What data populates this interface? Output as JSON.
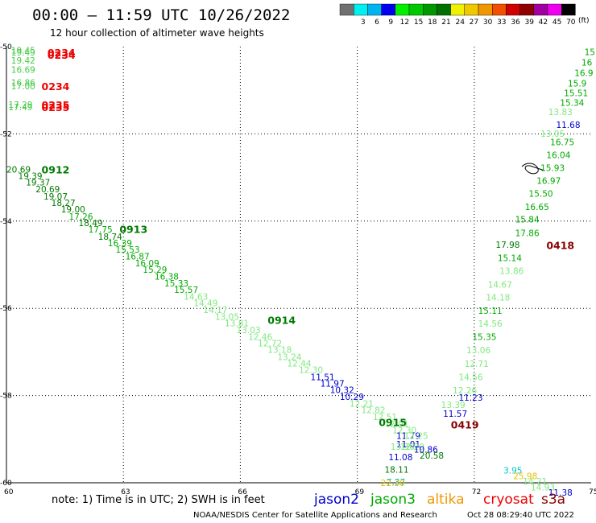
{
  "header": {
    "title": "00:00 – 11:59 UTC 10/26/2022",
    "subtitle": "12 hour collection of altimeter wave heights"
  },
  "color_scale": {
    "bins": [
      {
        "color": "#707070",
        "label": ""
      },
      {
        "color": "#00f0f0",
        "label": "3"
      },
      {
        "color": "#00b4f0",
        "label": "6"
      },
      {
        "color": "#0000f0",
        "label": "9"
      },
      {
        "color": "#00f000",
        "label": "12"
      },
      {
        "color": "#00c800",
        "label": "15"
      },
      {
        "color": "#009800",
        "label": "18"
      },
      {
        "color": "#007000",
        "label": "21"
      },
      {
        "color": "#f0f000",
        "label": "24"
      },
      {
        "color": "#f0c800",
        "label": "27"
      },
      {
        "color": "#f09600",
        "label": "30"
      },
      {
        "color": "#f05000",
        "label": "33"
      },
      {
        "color": "#d00000",
        "label": "36"
      },
      {
        "color": "#900000",
        "label": "39"
      },
      {
        "color": "#a000a0",
        "label": "42"
      },
      {
        "color": "#f000f0",
        "label": "45"
      },
      {
        "color": "#000000",
        "label": "70"
      }
    ],
    "unit": "(ft)"
  },
  "chart_data": {
    "type": "scatter",
    "xlim": [
      60,
      75
    ],
    "ylim": [
      -60,
      -50
    ],
    "x_ticks": [
      "60",
      "63",
      "66",
      "69",
      "72",
      "75"
    ],
    "y_ticks": [
      "-50",
      "-52",
      "-54",
      "-56",
      "-58",
      "-60"
    ],
    "grid": true,
    "value_colors": {
      "pale": "#80e880",
      "light": "#44cc44",
      "green": "#00aa00",
      "dark": "#007a00",
      "blue": "#0000cc",
      "cyan": "#00c8c8",
      "yellow": "#e8c000",
      "red": "#ee0000",
      "maroon": "#880000"
    },
    "points": [
      {
        "x": 60.12,
        "y": -50.08,
        "v": "19.45",
        "c": "light"
      },
      {
        "x": 60.12,
        "y": -50.13,
        "v": "19.49",
        "c": "light"
      },
      {
        "x": 60.12,
        "y": -50.31,
        "v": "19.42",
        "c": "light"
      },
      {
        "x": 60.12,
        "y": -50.53,
        "v": "16.69",
        "c": "light"
      },
      {
        "x": 60.12,
        "y": -50.82,
        "v": "16.86",
        "c": "light"
      },
      {
        "x": 60.12,
        "y": -50.9,
        "v": "17.00",
        "c": "light"
      },
      {
        "x": 60.05,
        "y": -51.33,
        "v": "17.29",
        "c": "light"
      },
      {
        "x": 60.05,
        "y": -51.38,
        "v": "17.49",
        "c": "light"
      },
      {
        "x": 60.0,
        "y": -52.81,
        "v": "20.69",
        "c": "dark"
      },
      {
        "x": 60.3,
        "y": -52.96,
        "v": "19.39",
        "c": "dark"
      },
      {
        "x": 60.5,
        "y": -53.11,
        "v": "19.37",
        "c": "dark"
      },
      {
        "x": 60.75,
        "y": -53.27,
        "v": "20.69",
        "c": "dark"
      },
      {
        "x": 60.95,
        "y": -53.43,
        "v": "19.07",
        "c": "dark"
      },
      {
        "x": 61.15,
        "y": -53.58,
        "v": "18.27",
        "c": "dark"
      },
      {
        "x": 61.4,
        "y": -53.73,
        "v": "19.00",
        "c": "dark"
      },
      {
        "x": 61.6,
        "y": -53.89,
        "v": "17.26",
        "c": "green"
      },
      {
        "x": 61.85,
        "y": -54.04,
        "v": "18.49",
        "c": "dark"
      },
      {
        "x": 62.1,
        "y": -54.19,
        "v": "17.75",
        "c": "green"
      },
      {
        "x": 62.35,
        "y": -54.35,
        "v": "18.74",
        "c": "dark"
      },
      {
        "x": 62.6,
        "y": -54.5,
        "v": "16.39",
        "c": "green"
      },
      {
        "x": 62.8,
        "y": -54.65,
        "v": "15.53",
        "c": "green"
      },
      {
        "x": 63.05,
        "y": -54.81,
        "v": "16.87",
        "c": "green"
      },
      {
        "x": 63.3,
        "y": -54.96,
        "v": "16.09",
        "c": "green"
      },
      {
        "x": 63.5,
        "y": -55.11,
        "v": "15.29",
        "c": "green"
      },
      {
        "x": 63.8,
        "y": -55.27,
        "v": "16.38",
        "c": "green"
      },
      {
        "x": 64.05,
        "y": -55.42,
        "v": "15.33",
        "c": "green"
      },
      {
        "x": 64.3,
        "y": -55.57,
        "v": "15.57",
        "c": "green"
      },
      {
        "x": 64.55,
        "y": -55.73,
        "v": "14.63",
        "c": "pale"
      },
      {
        "x": 64.8,
        "y": -55.88,
        "v": "14.49",
        "c": "pale"
      },
      {
        "x": 65.05,
        "y": -56.03,
        "v": "14.17",
        "c": "pale"
      },
      {
        "x": 65.35,
        "y": -56.19,
        "v": "13.05",
        "c": "pale"
      },
      {
        "x": 65.6,
        "y": -56.34,
        "v": "13.81",
        "c": "pale"
      },
      {
        "x": 65.9,
        "y": -56.49,
        "v": "13.03",
        "c": "pale"
      },
      {
        "x": 66.2,
        "y": -56.65,
        "v": "12.46",
        "c": "pale"
      },
      {
        "x": 66.45,
        "y": -56.8,
        "v": "12.72",
        "c": "pale"
      },
      {
        "x": 66.7,
        "y": -56.95,
        "v": "13.18",
        "c": "pale"
      },
      {
        "x": 66.95,
        "y": -57.11,
        "v": "13.24",
        "c": "pale"
      },
      {
        "x": 67.2,
        "y": -57.26,
        "v": "12.44",
        "c": "pale"
      },
      {
        "x": 67.5,
        "y": -57.41,
        "v": "12.30",
        "c": "pale"
      },
      {
        "x": 67.8,
        "y": -57.57,
        "v": "11.51",
        "c": "blue"
      },
      {
        "x": 68.05,
        "y": -57.72,
        "v": "11.97",
        "c": "blue"
      },
      {
        "x": 68.3,
        "y": -57.87,
        "v": "10.32",
        "c": "blue"
      },
      {
        "x": 68.55,
        "y": -58.03,
        "v": "10.29",
        "c": "blue"
      },
      {
        "x": 68.8,
        "y": -58.18,
        "v": "12.21",
        "c": "pale"
      },
      {
        "x": 69.1,
        "y": -58.33,
        "v": "12.82",
        "c": "pale"
      },
      {
        "x": 69.4,
        "y": -58.49,
        "v": "12.51",
        "c": "pale"
      },
      {
        "x": 69.7,
        "y": -58.64,
        "v": "12.01",
        "c": "pale"
      },
      {
        "x": 69.9,
        "y": -58.79,
        "v": "12.30",
        "c": "pale"
      },
      {
        "x": 70.0,
        "y": -58.92,
        "v": "11.79",
        "c": "blue"
      },
      {
        "x": 70.2,
        "y": -58.92,
        "v": "12.25",
        "c": "pale"
      },
      {
        "x": 70.0,
        "y": -59.11,
        "v": "11.01",
        "c": "blue"
      },
      {
        "x": 69.85,
        "y": -59.17,
        "v": "13.36",
        "c": "pale"
      },
      {
        "x": 70.1,
        "y": -59.17,
        "v": "12.20",
        "c": "pale"
      },
      {
        "x": 70.45,
        "y": -59.23,
        "v": "10.86",
        "c": "blue"
      },
      {
        "x": 69.8,
        "y": -59.41,
        "v": "11.08",
        "c": "blue"
      },
      {
        "x": 70.6,
        "y": -59.37,
        "v": "20.58",
        "c": "dark"
      },
      {
        "x": 69.7,
        "y": -59.7,
        "v": "18.11",
        "c": "dark"
      },
      {
        "x": 69.75,
        "y": -59.98,
        "v": "7.37",
        "c": "cyan"
      },
      {
        "x": 69.6,
        "y": -60.0,
        "v": "22.30",
        "c": "yellow"
      },
      {
        "x": 72.75,
        "y": -59.71,
        "v": "3.95",
        "c": "cyan"
      },
      {
        "x": 73.0,
        "y": -59.84,
        "v": "25.98",
        "c": "yellow"
      },
      {
        "x": 73.25,
        "y": -59.96,
        "v": "14.21",
        "c": "pale"
      },
      {
        "x": 73.45,
        "y": -60.1,
        "v": "14.93",
        "c": "pale"
      },
      {
        "x": 73.9,
        "y": -60.22,
        "v": "11.38",
        "c": "blue"
      },
      {
        "x": 71.6,
        "y": -58.04,
        "v": "11.23",
        "c": "blue"
      },
      {
        "x": 71.15,
        "y": -58.21,
        "v": "13.39",
        "c": "pale"
      },
      {
        "x": 71.2,
        "y": -58.41,
        "v": "11.57",
        "c": "blue"
      },
      {
        "x": 71.45,
        "y": -57.88,
        "v": "12.26",
        "c": "pale"
      },
      {
        "x": 71.6,
        "y": -57.57,
        "v": "14.56",
        "c": "pale"
      },
      {
        "x": 71.75,
        "y": -57.27,
        "v": "12.71",
        "c": "pale"
      },
      {
        "x": 71.8,
        "y": -56.96,
        "v": "13.06",
        "c": "pale"
      },
      {
        "x": 71.95,
        "y": -56.65,
        "v": "15.35",
        "c": "green"
      },
      {
        "x": 72.1,
        "y": -56.35,
        "v": "14.56",
        "c": "pale"
      },
      {
        "x": 72.1,
        "y": -56.05,
        "v": "15.11",
        "c": "green"
      },
      {
        "x": 72.3,
        "y": -55.75,
        "v": "14.18",
        "c": "pale"
      },
      {
        "x": 72.35,
        "y": -55.45,
        "v": "14.67",
        "c": "pale"
      },
      {
        "x": 72.65,
        "y": -55.14,
        "v": "13.86",
        "c": "pale"
      },
      {
        "x": 72.6,
        "y": -54.84,
        "v": "15.14",
        "c": "green"
      },
      {
        "x": 72.55,
        "y": -54.54,
        "v": "17.98",
        "c": "dark"
      },
      {
        "x": 73.05,
        "y": -54.27,
        "v": "17.86",
        "c": "green"
      },
      {
        "x": 73.05,
        "y": -53.96,
        "v": "15.84",
        "c": "green"
      },
      {
        "x": 73.3,
        "y": -53.67,
        "v": "16.65",
        "c": "green"
      },
      {
        "x": 73.4,
        "y": -53.37,
        "v": "15.50",
        "c": "green"
      },
      {
        "x": 73.6,
        "y": -53.07,
        "v": "16.97",
        "c": "green"
      },
      {
        "x": 73.7,
        "y": -52.78,
        "v": "15.93",
        "c": "green"
      },
      {
        "x": 73.85,
        "y": -52.48,
        "v": "16.04",
        "c": "green"
      },
      {
        "x": 73.95,
        "y": -52.19,
        "v": "16.75",
        "c": "green"
      },
      {
        "x": 73.7,
        "y": -51.99,
        "v": "13.05",
        "c": "pale"
      },
      {
        "x": 74.1,
        "y": -51.79,
        "v": "11.68",
        "c": "blue"
      },
      {
        "x": 73.9,
        "y": -51.49,
        "v": "13.83",
        "c": "pale"
      },
      {
        "x": 74.2,
        "y": -51.28,
        "v": "15.34",
        "c": "green"
      },
      {
        "x": 74.3,
        "y": -51.06,
        "v": "15.51",
        "c": "green"
      },
      {
        "x": 74.4,
        "y": -50.84,
        "v": "15.9",
        "c": "green"
      },
      {
        "x": 74.6,
        "y": -50.6,
        "v": "16.9",
        "c": "green"
      },
      {
        "x": 74.75,
        "y": -50.36,
        "v": "16",
        "c": "green"
      },
      {
        "x": 74.95,
        "y": -50.12,
        "v": "15",
        "c": "green"
      }
    ],
    "pass_times": [
      {
        "x": 61.05,
        "y": -50.13,
        "v": "0234",
        "c": "red"
      },
      {
        "x": 61.05,
        "y": -50.18,
        "v": "0234",
        "c": "red"
      },
      {
        "x": 60.9,
        "y": -50.9,
        "v": "0234",
        "c": "red"
      },
      {
        "x": 60.9,
        "y": -51.33,
        "v": "0235",
        "c": "red"
      },
      {
        "x": 60.9,
        "y": -51.38,
        "v": "0235",
        "c": "red"
      },
      {
        "x": 60.9,
        "y": -52.81,
        "v": "0912",
        "c": "dark"
      },
      {
        "x": 62.9,
        "y": -54.18,
        "v": "0913",
        "c": "dark"
      },
      {
        "x": 66.7,
        "y": -56.26,
        "v": "0914",
        "c": "dark"
      },
      {
        "x": 69.55,
        "y": -58.61,
        "v": "0915",
        "c": "dark"
      },
      {
        "x": 71.4,
        "y": -58.66,
        "v": "0419",
        "c": "maroon"
      },
      {
        "x": 73.85,
        "y": -54.55,
        "v": "0418",
        "c": "maroon"
      }
    ]
  },
  "footer": {
    "note": "note:  1) Time is in UTC;  2) SWH is in feet",
    "satellites": [
      {
        "name": "jason2",
        "color": "#0000cc"
      },
      {
        "name": "jason3",
        "color": "#00aa00"
      },
      {
        "name": "altika",
        "color": "#f09600"
      },
      {
        "name": "cryosat",
        "color": "#ee0000"
      },
      {
        "name": "s3a",
        "color": "#880000"
      }
    ],
    "credit": "NOAA/NESDIS Center for Satellite Applications and Research",
    "timestamp": "Oct 28 08:29:40 UTC 2022"
  }
}
